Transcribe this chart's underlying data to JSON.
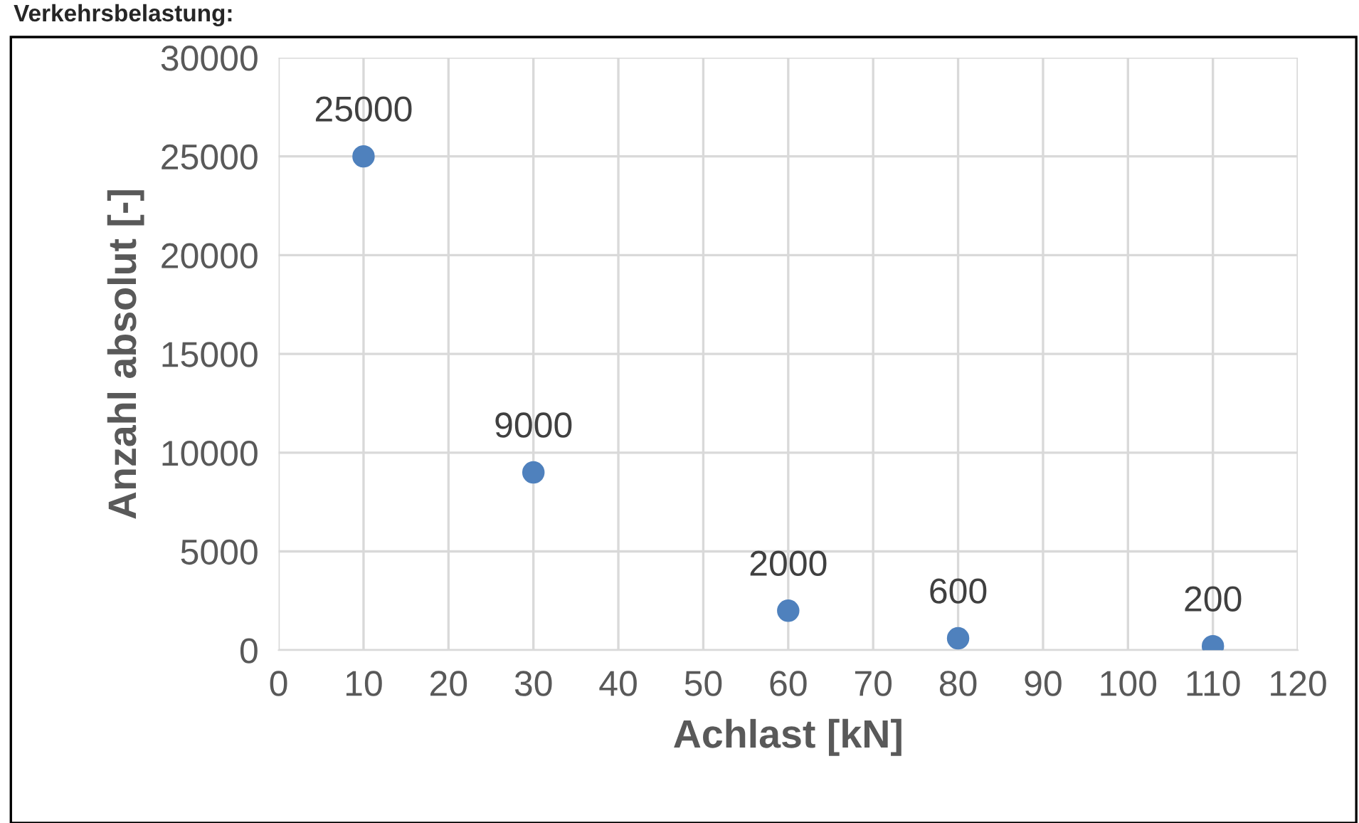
{
  "chart_data": {
    "type": "scatter",
    "title": "Verkehrsbelastung:",
    "xlabel": "Achlast [kN]",
    "ylabel": "Anzahl absolut [-]",
    "x": [
      10,
      30,
      60,
      80,
      110
    ],
    "series": [
      {
        "color": "#4f81bd",
        "values": [
          25000,
          9000,
          2000,
          600,
          200
        ]
      }
    ],
    "xlim": [
      0,
      120
    ],
    "xticks": [
      0,
      10,
      20,
      30,
      40,
      50,
      60,
      70,
      80,
      90,
      100,
      110,
      120
    ],
    "ylim": [
      0,
      30000
    ],
    "yticks": [
      0,
      5000,
      10000,
      15000,
      20000,
      25000,
      30000
    ],
    "grid": true,
    "data_labels": true,
    "marker": "circle",
    "legend": false
  }
}
